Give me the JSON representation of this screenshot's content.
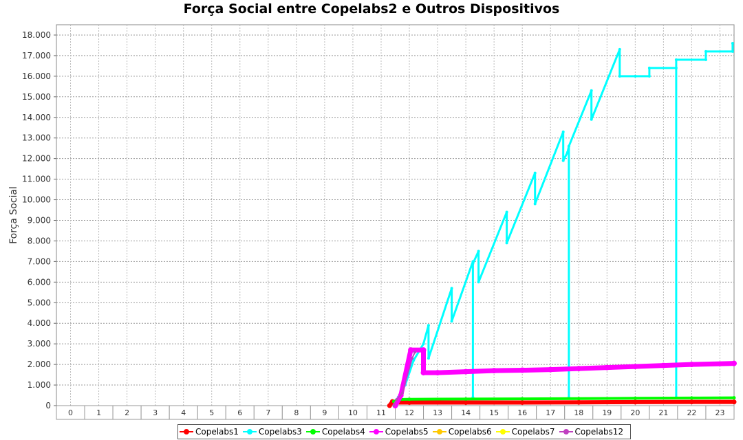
{
  "chart_data": {
    "type": "line",
    "title": "Força Social entre Copelabs2 e Outros Dispositivos",
    "xlabel": "",
    "ylabel": "Força Social",
    "x_categories": [
      "0",
      "1",
      "2",
      "3",
      "4",
      "5",
      "6",
      "7",
      "8",
      "9",
      "10",
      "11",
      "12",
      "13",
      "14",
      "15",
      "16",
      "17",
      "18",
      "19",
      "20",
      "21",
      "22",
      "23"
    ],
    "xlim": [
      -0.5,
      23.5
    ],
    "ylim": [
      0,
      18500
    ],
    "y_ticks": [
      0,
      1000,
      2000,
      3000,
      4000,
      5000,
      6000,
      7000,
      8000,
      9000,
      10000,
      11000,
      12000,
      13000,
      14000,
      15000,
      16000,
      17000,
      18000
    ],
    "y_tick_labels": [
      "0",
      "1.000",
      "2.000",
      "3.000",
      "4.000",
      "5.000",
      "6.000",
      "7.000",
      "8.000",
      "9.000",
      "10.000",
      "11.000",
      "12.000",
      "13.000",
      "14.000",
      "15.000",
      "16.000",
      "17.000",
      "18.000"
    ],
    "grid": true,
    "legend_position": "bottom",
    "series": [
      {
        "name": "Copelabs1",
        "color": "#ff0000",
        "width": 6,
        "points": [
          [
            11.3,
            0
          ],
          [
            11.4,
            200
          ],
          [
            11.5,
            150
          ],
          [
            12,
            150
          ],
          [
            14,
            150
          ],
          [
            16,
            150
          ],
          [
            18,
            160
          ],
          [
            20,
            170
          ],
          [
            22,
            180
          ],
          [
            23.5,
            180
          ]
        ]
      },
      {
        "name": "Copelabs3",
        "color": "#00ffff",
        "width": 3,
        "points": [
          [
            11.55,
            0
          ],
          [
            11.6,
            400
          ],
          [
            11.85,
            1000
          ],
          [
            12.15,
            2200
          ],
          [
            12.5,
            3000
          ],
          [
            12.68,
            3900
          ],
          [
            12.68,
            2300
          ],
          [
            13.5,
            5700
          ],
          [
            13.5,
            4100
          ],
          [
            14.25,
            7000
          ],
          [
            14.25,
            400
          ],
          [
            14.25,
            6900
          ],
          [
            14.45,
            7500
          ],
          [
            14.45,
            6000
          ],
          [
            15.45,
            9400
          ],
          [
            15.45,
            7900
          ],
          [
            16.45,
            11300
          ],
          [
            16.45,
            9800
          ],
          [
            17.45,
            13300
          ],
          [
            17.45,
            11900
          ],
          [
            17.6,
            12300
          ],
          [
            17.65,
            12600
          ],
          [
            17.65,
            400
          ],
          [
            17.65,
            12600
          ],
          [
            18.45,
            15300
          ],
          [
            18.45,
            13900
          ],
          [
            19.45,
            17300
          ],
          [
            19.45,
            16000
          ],
          [
            20,
            16000
          ],
          [
            20.5,
            16000
          ],
          [
            20.5,
            16400
          ],
          [
            21.45,
            16400
          ],
          [
            21.45,
            400
          ],
          [
            21.45,
            16800
          ],
          [
            22.5,
            16800
          ],
          [
            22.5,
            17200
          ],
          [
            23.45,
            17200
          ],
          [
            23.45,
            17600
          ]
        ]
      },
      {
        "name": "Copelabs4",
        "color": "#00ff00",
        "width": 4,
        "points": [
          [
            11.45,
            200
          ],
          [
            11.6,
            300
          ],
          [
            12,
            310
          ],
          [
            14,
            320
          ],
          [
            16,
            330
          ],
          [
            18,
            340
          ],
          [
            20,
            360
          ],
          [
            22,
            370
          ],
          [
            23.5,
            380
          ]
        ]
      },
      {
        "name": "Copelabs5",
        "color": "#ff00ff",
        "width": 7,
        "points": [
          [
            11.5,
            0
          ],
          [
            11.7,
            500
          ],
          [
            12.05,
            2700
          ],
          [
            12.5,
            2700
          ],
          [
            12.5,
            1600
          ],
          [
            13,
            1600
          ],
          [
            14,
            1650
          ],
          [
            15,
            1700
          ],
          [
            16,
            1720
          ],
          [
            17,
            1750
          ],
          [
            18,
            1800
          ],
          [
            19,
            1850
          ],
          [
            20,
            1900
          ],
          [
            21,
            1950
          ],
          [
            22,
            2000
          ],
          [
            23.5,
            2050
          ]
        ]
      },
      {
        "name": "Copelabs6",
        "color": "#ffc800",
        "width": 2,
        "points": []
      },
      {
        "name": "Copelabs7",
        "color": "#ffff00",
        "width": 2,
        "points": []
      },
      {
        "name": "Copelabs12",
        "color": "#c040c0",
        "width": 2,
        "points": [
          [
            11.45,
            0
          ],
          [
            11.55,
            300
          ],
          [
            11.75,
            600
          ],
          [
            12.1,
            2300
          ],
          [
            12.2,
            2600
          ]
        ]
      }
    ]
  }
}
